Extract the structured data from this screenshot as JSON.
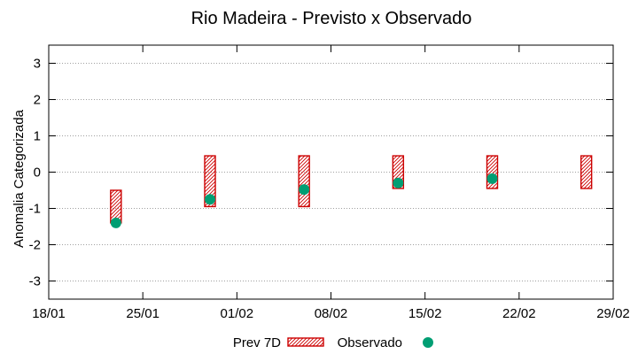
{
  "chart_data": {
    "type": "floating-bar-scatter",
    "title": "Rio Madeira - Previsto x Observado",
    "xlabel": "",
    "ylabel": "Anomalia Categorizada",
    "x_axis": {
      "type": "date",
      "range_days": [
        0,
        42
      ],
      "ticks": [
        {
          "day": 0,
          "label": "18/01"
        },
        {
          "day": 7,
          "label": "25/01"
        },
        {
          "day": 14,
          "label": "01/02"
        },
        {
          "day": 21,
          "label": "08/02"
        },
        {
          "day": 28,
          "label": "15/02"
        },
        {
          "day": 35,
          "label": "22/02"
        },
        {
          "day": 42,
          "label": "29/02"
        }
      ]
    },
    "ylim": [
      -3.5,
      3.5
    ],
    "yticks": [
      -3,
      -2,
      -1,
      0,
      1,
      2,
      3
    ],
    "grid": "horizontal dotted",
    "series": [
      {
        "name": "Prev 7D",
        "kind": "floating-bar",
        "color": "#cc0000",
        "points": [
          {
            "day": 5,
            "low": -1.4,
            "high": -0.5
          },
          {
            "day": 12,
            "low": -0.95,
            "high": 0.45
          },
          {
            "day": 19,
            "low": -0.95,
            "high": 0.45
          },
          {
            "day": 26,
            "low": -0.45,
            "high": 0.45
          },
          {
            "day": 33,
            "low": -0.45,
            "high": 0.45
          },
          {
            "day": 40,
            "low": -0.45,
            "high": 0.45
          }
        ]
      },
      {
        "name": "Observado",
        "kind": "scatter",
        "color": "#009e73",
        "points": [
          {
            "day": 5,
            "value": -1.4
          },
          {
            "day": 12,
            "value": -0.75
          },
          {
            "day": 19,
            "value": -0.48
          },
          {
            "day": 26,
            "value": -0.3
          },
          {
            "day": 33,
            "value": -0.18
          }
        ]
      }
    ],
    "legend": {
      "position": "bottom-center",
      "entries": [
        "Prev 7D",
        "Observado"
      ]
    }
  }
}
